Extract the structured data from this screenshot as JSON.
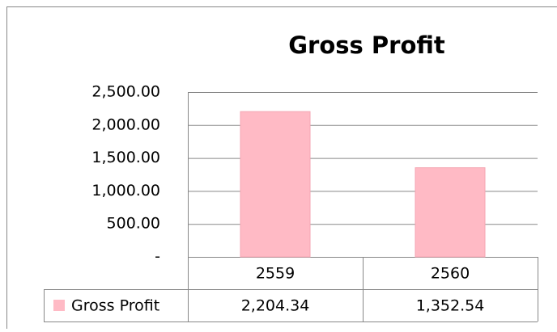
{
  "chart_data": {
    "type": "bar",
    "title": "Gross Profit",
    "categories": [
      "2559",
      "2560"
    ],
    "series": [
      {
        "name": "Gross Profit",
        "color": "#ffbac5",
        "values": [
          2204.34,
          1352.54
        ],
        "value_labels": [
          "2,204.34",
          "1,352.54"
        ]
      }
    ],
    "ylim": [
      0,
      2500
    ],
    "yticks": [
      {
        "value": 0,
        "label": "-"
      },
      {
        "value": 500,
        "label": "500.00"
      },
      {
        "value": 1000,
        "label": "1,000.00"
      },
      {
        "value": 1500,
        "label": "1,500.00"
      },
      {
        "value": 2000,
        "label": "2,000.00"
      },
      {
        "value": 2500,
        "label": "2,500.00"
      }
    ],
    "grid": true
  }
}
